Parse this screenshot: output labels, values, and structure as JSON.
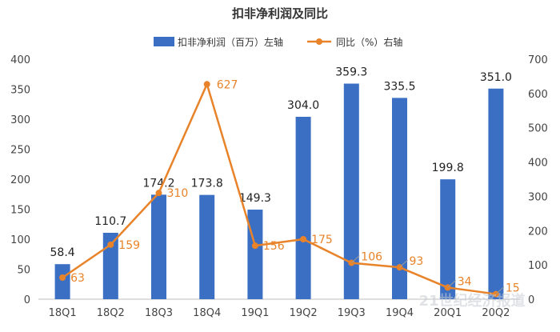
{
  "chart_data": {
    "type": "bar",
    "title": "扣非净利润及同比",
    "categories": [
      "18Q1",
      "18Q2",
      "18Q3",
      "18Q4",
      "19Q1",
      "19Q2",
      "19Q3",
      "19Q4",
      "20Q1",
      "20Q2"
    ],
    "series": [
      {
        "name": "扣非净利润（百万）左轴",
        "type": "bar",
        "axis": "left",
        "color": "#3B6FC4",
        "values": [
          58.4,
          110.7,
          174.2,
          173.8,
          149.3,
          304.0,
          359.3,
          335.5,
          199.8,
          351.0
        ],
        "labels": [
          "58.4",
          "110.7",
          "174.2",
          "173.8",
          "149.3",
          "304.0",
          "359.3",
          "335.5",
          "199.8",
          "351.0"
        ]
      },
      {
        "name": "同比（%）右轴",
        "type": "line",
        "axis": "right",
        "color": "#E8832A",
        "values": [
          63,
          159,
          310,
          627,
          156,
          175,
          106,
          93,
          34,
          15
        ],
        "labels": [
          "63",
          "159",
          "310",
          "627",
          "156",
          "175",
          "106",
          "93",
          "34",
          "15"
        ]
      }
    ],
    "y_left": {
      "lim": [
        0,
        400
      ],
      "ticks": [
        0,
        50,
        100,
        150,
        200,
        250,
        300,
        350,
        400
      ]
    },
    "y_right": {
      "lim": [
        0,
        700
      ],
      "ticks": [
        0,
        100,
        200,
        300,
        400,
        500,
        600,
        700
      ]
    },
    "grid": false,
    "legend_position": "top-center"
  }
}
